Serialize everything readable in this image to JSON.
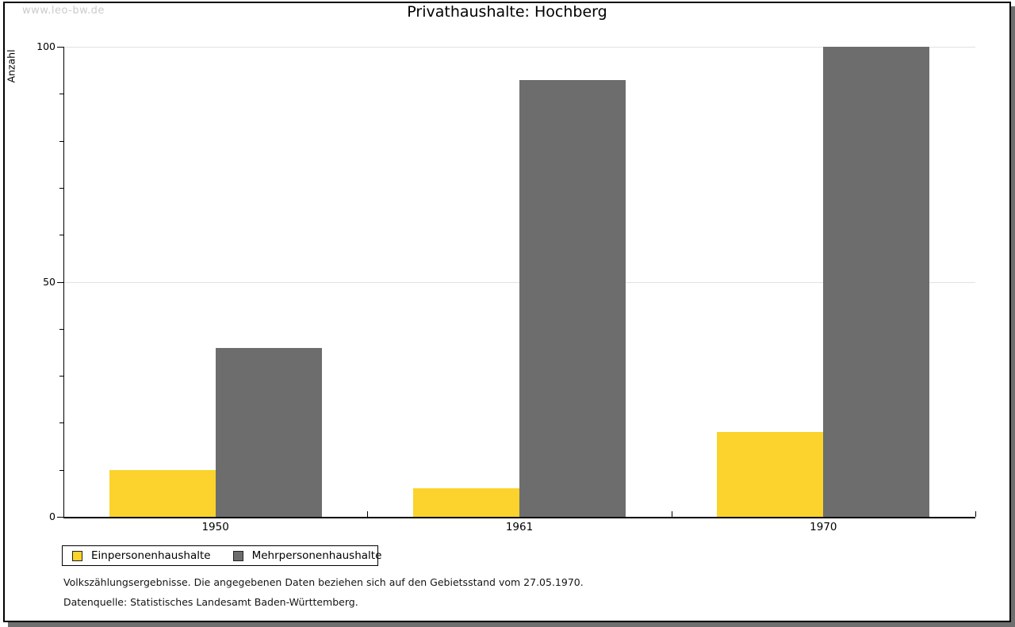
{
  "watermark": "www.leo-bw.de",
  "title": "Privathaushalte: Hochberg",
  "chart_data": {
    "type": "bar",
    "title": "Privathaushalte: Hochberg",
    "categories": [
      "1950",
      "1961",
      "1970"
    ],
    "series": [
      {
        "name": "Einpersonenhaushalte",
        "color": "#FBD32C",
        "values": [
          10,
          6,
          18
        ]
      },
      {
        "name": "Mehrpersonenhaushalte",
        "color": "#6D6D6D",
        "values": [
          36,
          93,
          100
        ]
      }
    ],
    "xlabel": "",
    "ylabel": "Anzahl",
    "ylim": [
      0,
      100
    ],
    "yticks": [
      0,
      50,
      100
    ],
    "minor_tick_step": 10,
    "grid": true,
    "legend_position": "bottom-left"
  },
  "footnotes": {
    "line1": "Volkszählungsergebnisse. Die angegebenen Daten beziehen sich auf den Gebietsstand vom 27.05.1970.",
    "line2": "Datenquelle: Statistisches Landesamt Baden-Württemberg."
  },
  "colors": {
    "background": "#FFFFFF",
    "frame_border": "#000000",
    "frame_shadow": "#6F6F6F",
    "gridline": "#E2E2E2",
    "watermark": "#CCCCCC"
  }
}
